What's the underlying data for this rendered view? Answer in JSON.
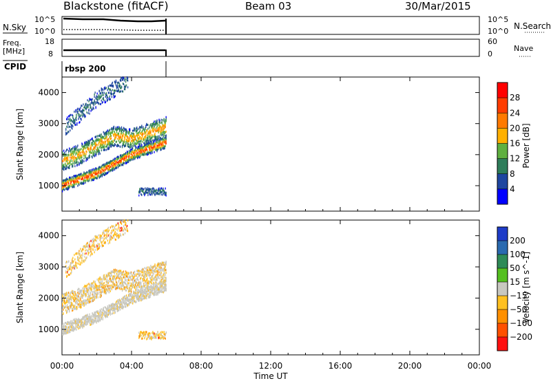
{
  "header": {
    "station": "Blackstone (fitACF)",
    "beam": "Beam 03",
    "date": "30/Mar/2015"
  },
  "status_panels": {
    "nsky": {
      "label": "N.Sky",
      "ticks": [
        "10^5",
        "10^0"
      ],
      "right_ticks": [
        "10^5",
        "10^0"
      ],
      "right_label": "N.Search"
    },
    "freq": {
      "label_line1": "Freq.",
      "label_line2": "[MHz]",
      "ticks": [
        "18",
        "8"
      ],
      "right_ticks": [
        "60",
        "0"
      ],
      "right_label": "Nave"
    },
    "cpid": {
      "label": "CPID",
      "program": "rbsp 200"
    }
  },
  "colors": {
    "power_scale": [
      "#0000ff",
      "#1e46a0",
      "#2e7d5a",
      "#5fb040",
      "#ffb000",
      "#ff7a00",
      "#ff3c00",
      "#ff0000"
    ],
    "velocity_scale": [
      "#1e3cc8",
      "#2a6ab0",
      "#2e8b57",
      "#55c020",
      "#c8c8c0",
      "#ffc020",
      "#ff9000",
      "#ff5000",
      "#ff1010"
    ]
  },
  "chart_data": [
    {
      "type": "heatmap",
      "title": "Power",
      "xlabel": "Time UT",
      "ylabel": "Slant Range [km]",
      "x_ticks": [
        "00:00",
        "04:00",
        "08:00",
        "12:00",
        "16:00",
        "20:00",
        "00:00"
      ],
      "xlim": [
        0,
        24
      ],
      "y_ticks": [
        1000,
        2000,
        3000,
        4000
      ],
      "ylim": [
        180,
        4500
      ],
      "colorbar": {
        "label": "Power [dB]",
        "ticks": [
          4,
          8,
          12,
          16,
          20,
          24,
          28
        ]
      },
      "data_extent_hours": [
        0,
        6
      ],
      "features": [
        {
          "t": [
            0.0,
            1.0,
            2.0,
            3.0,
            4.0,
            5.0,
            6.0
          ],
          "range": [
            1000,
            1200,
            1400,
            1700,
            2000,
            2200,
            2400
          ],
          "level": "high"
        },
        {
          "t": [
            0.0,
            1.0,
            2.0,
            3.0,
            4.0,
            5.0,
            6.0
          ],
          "range": [
            1800,
            2000,
            2300,
            2600,
            2500,
            2700,
            2900
          ],
          "level": "medium"
        },
        {
          "t": [
            0.2,
            1.0,
            2.0,
            3.0,
            3.8
          ],
          "range": [
            2900,
            3300,
            3800,
            4100,
            4400
          ],
          "level": "low"
        },
        {
          "t": [
            4.4,
            6.0
          ],
          "range": [
            800,
            800
          ],
          "level": "low"
        }
      ]
    },
    {
      "type": "heatmap",
      "title": "Velocity",
      "xlabel": "Time UT",
      "ylabel": "Slant Range [km]",
      "x_ticks": [
        "00:00",
        "04:00",
        "08:00",
        "12:00",
        "16:00",
        "20:00",
        "00:00"
      ],
      "xlim": [
        0,
        24
      ],
      "y_ticks": [
        1000,
        2000,
        3000,
        4000
      ],
      "ylim": [
        180,
        4500
      ],
      "colorbar": {
        "label": "Velocity [m s^-1]",
        "ticks": [
          200,
          100,
          50,
          15,
          -15,
          -50,
          -100,
          -200
        ]
      },
      "data_extent_hours": [
        0,
        6
      ],
      "features": [
        {
          "t": [
            0.0,
            1.0,
            2.0,
            3.0,
            4.0,
            5.0,
            6.0
          ],
          "range": [
            1000,
            1200,
            1400,
            1700,
            2000,
            2200,
            2400
          ],
          "level": "ground"
        },
        {
          "t": [
            0.0,
            1.0,
            2.0,
            3.0,
            4.0,
            5.0,
            6.0
          ],
          "range": [
            1800,
            2000,
            2300,
            2600,
            2500,
            2700,
            2900
          ],
          "level": "mixed"
        },
        {
          "t": [
            0.2,
            1.0,
            2.0,
            3.0,
            3.8
          ],
          "range": [
            2900,
            3300,
            3800,
            4100,
            4400
          ],
          "level": "negative"
        },
        {
          "t": [
            4.4,
            6.0
          ],
          "range": [
            800,
            800
          ],
          "level": "negative"
        }
      ]
    }
  ]
}
